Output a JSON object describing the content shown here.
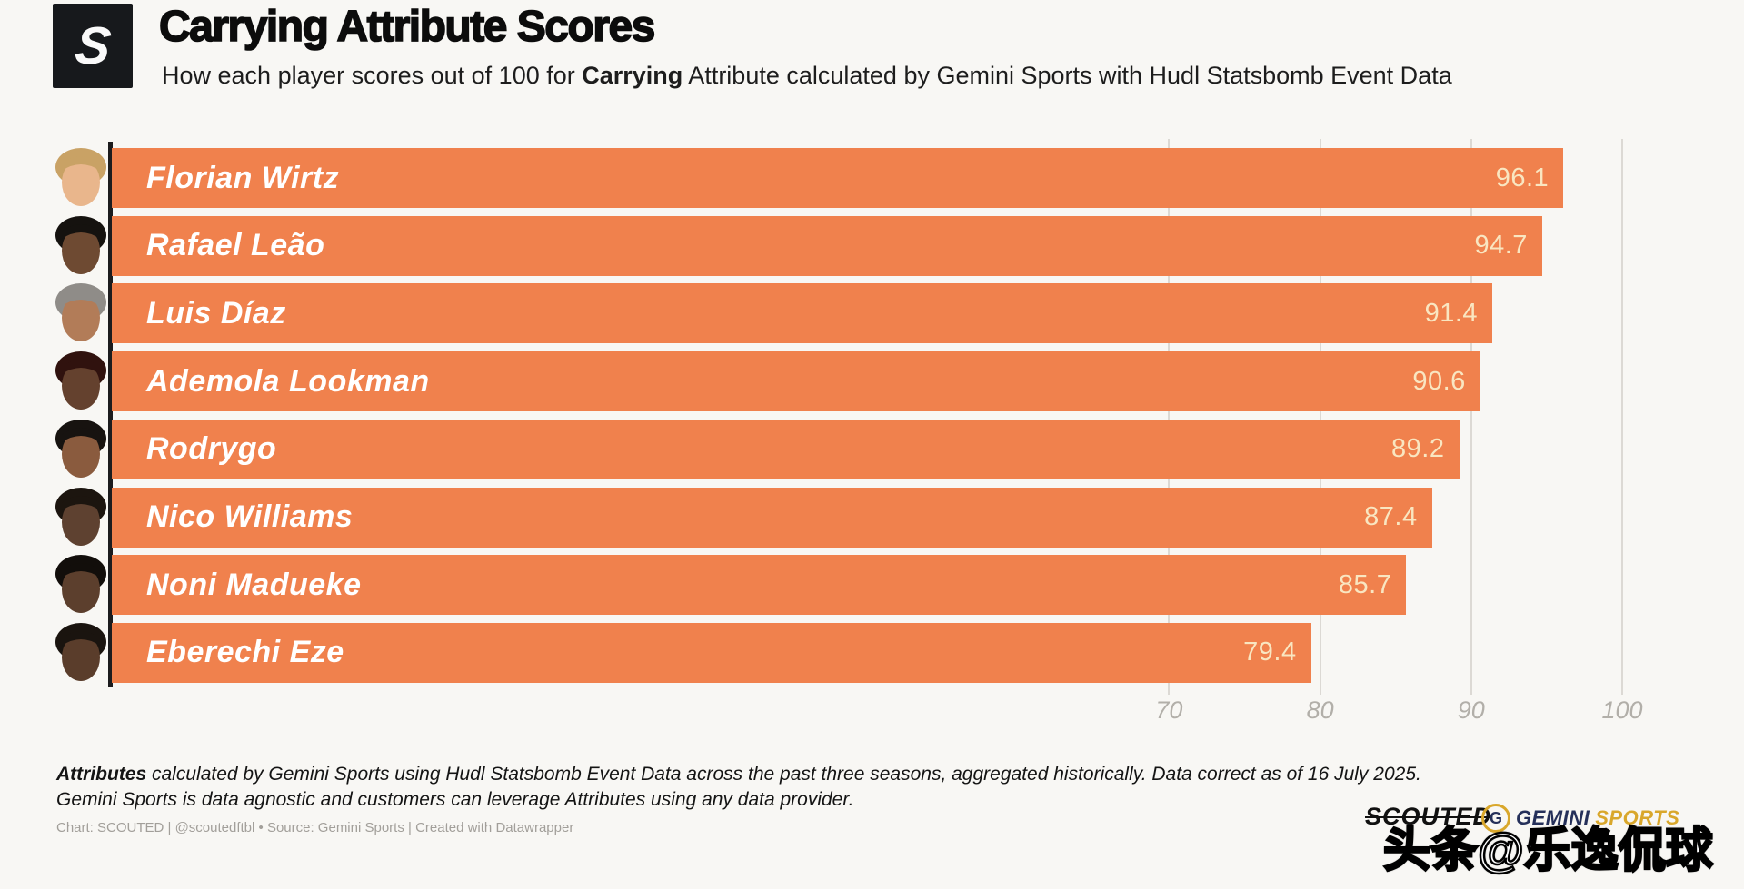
{
  "header": {
    "logo_letter": "S",
    "title": "Carrying Attribute Scores",
    "subtitle_prefix": "How each player scores out of 100 for ",
    "subtitle_bold": "Carrying",
    "subtitle_suffix": " Attribute calculated by Gemini Sports with Hudl Statsbomb Event Data"
  },
  "chart_data": {
    "type": "bar",
    "orientation": "horizontal",
    "title": "Carrying Attribute Scores",
    "categories": [
      "Florian Wirtz",
      "Rafael Leão",
      "Luis Díaz",
      "Ademola Lookman",
      "Rodrygo",
      "Nico Williams",
      "Noni Madueke",
      "Eberechi Eze"
    ],
    "values": [
      96.1,
      94.7,
      91.4,
      90.6,
      89.2,
      87.4,
      85.7,
      79.4
    ],
    "xlim": [
      0,
      100
    ],
    "xticks": [
      70,
      80,
      90,
      100
    ],
    "grid": true,
    "legend": false,
    "bar_color": "#F0814D",
    "value_label_color": "#F9E6C1"
  },
  "avatars": [
    {
      "skin": "#E9B68C",
      "hair": "#C9A265"
    },
    {
      "skin": "#6E4A32",
      "hair": "#15120F"
    },
    {
      "skin": "#B27C58",
      "hair": "#8F8C88"
    },
    {
      "skin": "#64412E",
      "hair": "#30120E"
    },
    {
      "skin": "#8A5B3E",
      "hair": "#171310"
    },
    {
      "skin": "#5E4130",
      "hair": "#1C150F"
    },
    {
      "skin": "#5C3F2D",
      "hair": "#120E0B"
    },
    {
      "skin": "#5A3D2B",
      "hair": "#1A140F"
    }
  ],
  "footer": {
    "line1_bold": "Attributes",
    "line1_rest": " calculated by Gemini Sports using Hudl Statsbomb Event Data across the past three seasons, aggregated historically. Data correct as of 16 July 2025.",
    "line2": "Gemini Sports is data agnostic and customers can leverage Attributes using any data provider."
  },
  "credit": "Chart: SCOUTED | @scoutedftbl • Source: Gemini Sports | Created with Datawrapper",
  "logos": {
    "scouted": "SCOUTED",
    "gemini_letter": "G",
    "gemini_word": "GEMINI",
    "sports_word": "SPORTS",
    "gemini_navy": "#25305A",
    "gemini_gold": "#D9A72B"
  },
  "watermark": "头条@乐逸侃球"
}
